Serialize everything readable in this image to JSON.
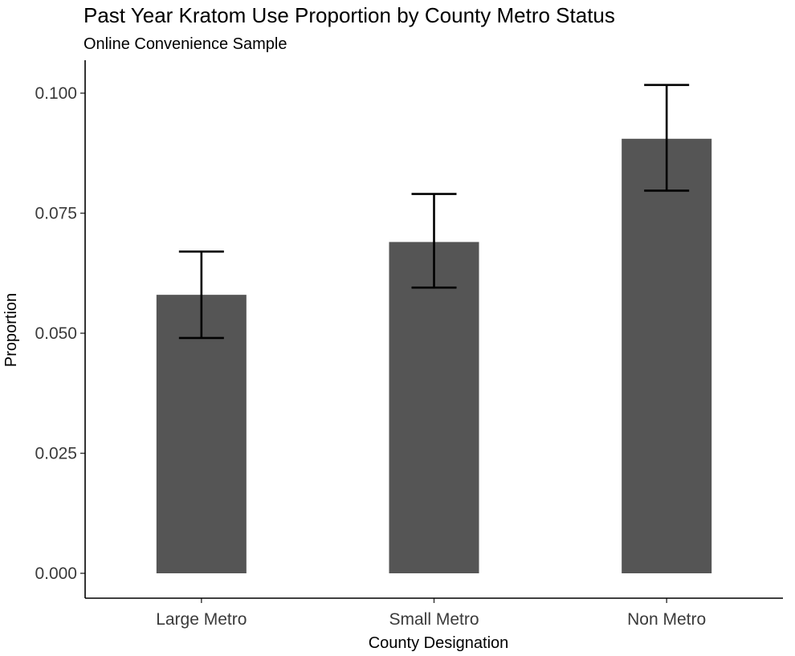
{
  "chart_data": {
    "type": "bar",
    "title": "Past Year Kratom Use Proportion by County Metro Status",
    "subtitle": "Online Convenience Sample",
    "xlabel": "County Designation",
    "ylabel": "Proportion",
    "categories": [
      "Large Metro",
      "Small Metro",
      "Non Metro"
    ],
    "values": [
      0.058,
      0.069,
      0.0905
    ],
    "error_lower": [
      0.049,
      0.0595,
      0.0797
    ],
    "error_upper": [
      0.067,
      0.079,
      0.1017
    ],
    "ylim": [
      0,
      0.105
    ],
    "yticks": [
      0.0,
      0.025,
      0.05,
      0.075,
      0.1
    ],
    "ytick_labels": [
      "0.000",
      "0.025",
      "0.050",
      "0.075",
      "0.100"
    ],
    "grid": false,
    "legend": "none",
    "bar_color": "#555555",
    "errorbar_color": "#000000"
  }
}
